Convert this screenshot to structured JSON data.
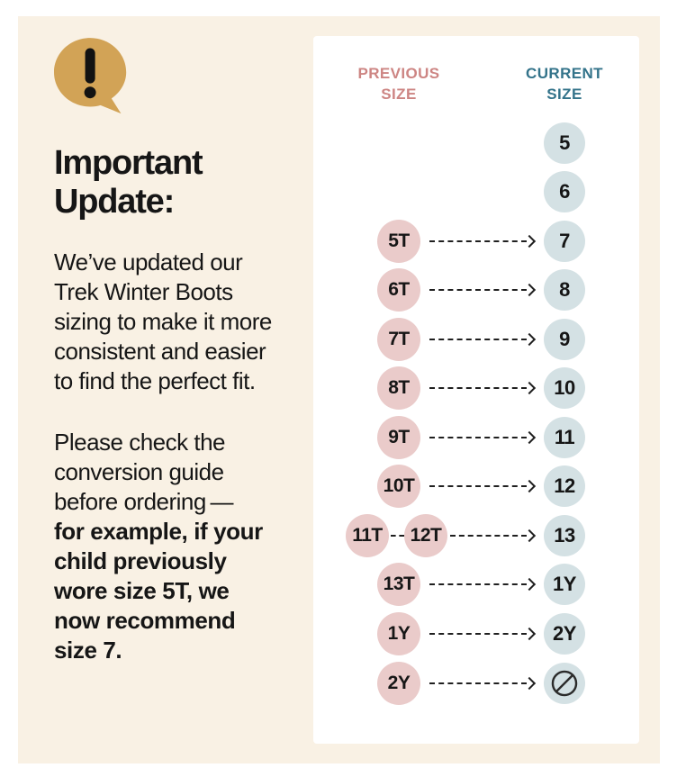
{
  "colors": {
    "background": "#ffffff",
    "card_bg": "#f9f1e4",
    "panel_bg": "#ffffff",
    "gold": "#d2a356",
    "ink": "#161616",
    "prev_header": "#cd8583",
    "cur_header": "#33738a",
    "prev_circle": "#eacbca",
    "cur_circle": "#d4e1e4"
  },
  "left": {
    "icon": "exclamation-speech-bubble-icon",
    "heading": "Important\nUpdate:",
    "para1": "We’ve updated our\nTrek Winter Boots\nsizing to make it more\nconsistent and easier\nto find the perfect fit.",
    "para2_intro": "Please check the\nconversion guide\nbefore ordering —\n",
    "para2_bold": "for example, if your\nchild previously\nwore size 5T, we\nnow recommend\nsize 7."
  },
  "chart": {
    "prev_header": "PREVIOUS\nSIZE",
    "cur_header": "CURRENT\nSIZE",
    "rows": [
      {
        "prev": null,
        "cur": "5"
      },
      {
        "prev": null,
        "cur": "6"
      },
      {
        "prev": "5T",
        "cur": "7"
      },
      {
        "prev": "6T",
        "cur": "8"
      },
      {
        "prev": "7T",
        "cur": "9"
      },
      {
        "prev": "8T",
        "cur": "10"
      },
      {
        "prev": "9T",
        "cur": "11"
      },
      {
        "prev": "10T",
        "cur": "12"
      },
      {
        "prev": [
          "11T",
          "12T"
        ],
        "cur": "13"
      },
      {
        "prev": "13T",
        "cur": "1Y"
      },
      {
        "prev": "1Y",
        "cur": "2Y"
      },
      {
        "prev": "2Y",
        "cur": null,
        "cur_icon": "no-size-icon"
      }
    ]
  },
  "chart_data": {
    "type": "table",
    "title": "Trek Winter Boots size conversion guide",
    "columns": [
      "Previous Size",
      "Current Size"
    ],
    "rows": [
      [
        "",
        "5"
      ],
      [
        "",
        "6"
      ],
      [
        "5T",
        "7"
      ],
      [
        "6T",
        "8"
      ],
      [
        "7T",
        "9"
      ],
      [
        "8T",
        "10"
      ],
      [
        "9T",
        "11"
      ],
      [
        "10T",
        "12"
      ],
      [
        "11T / 12T",
        "13"
      ],
      [
        "13T",
        "1Y"
      ],
      [
        "1Y",
        "2Y"
      ],
      [
        "2Y",
        "(no size)"
      ]
    ]
  }
}
